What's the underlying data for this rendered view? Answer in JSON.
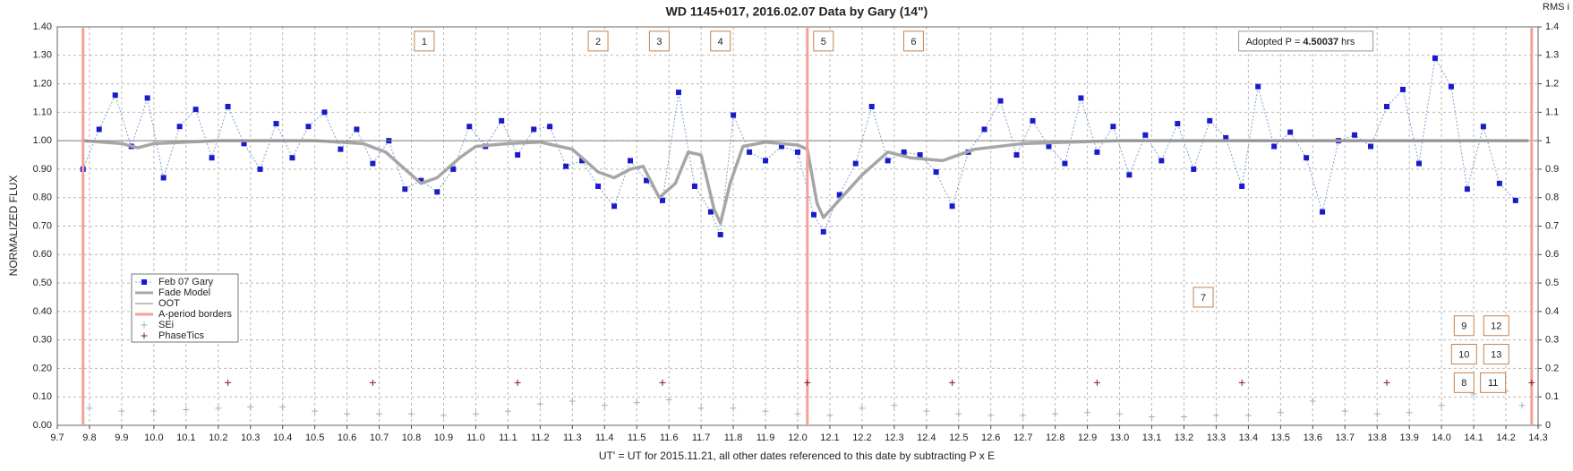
{
  "chart_data": {
    "type": "scatter",
    "title": "WD 1145+017, 2016.02.07 Data by Gary (14\")",
    "x_label": "UT' = UT for 2015.11.21, all other dates referenced to this date by subtracting P x E",
    "y_label": "NORMALIZED FLUX",
    "y2_label": "RMS i",
    "xlim": [
      9.7,
      14.3
    ],
    "xticks": [
      9.7,
      9.8,
      9.9,
      {
        "value": 10,
        "label": "10.0"
      },
      10.1,
      10.2,
      10.3,
      10.4,
      10.5,
      10.6,
      10.7,
      10.8,
      10.9,
      {
        "value": 11,
        "label": "11.0"
      },
      11.1,
      11.2,
      11.3,
      11.4,
      11.5,
      11.6,
      11.7,
      11.8,
      11.9,
      {
        "value": 12,
        "label": "12.0"
      },
      12.1,
      12.2,
      12.3,
      12.4,
      12.5,
      12.6,
      12.7,
      12.8,
      12.9,
      {
        "value": 13,
        "label": "13.0"
      },
      13.1,
      13.2,
      13.3,
      13.4,
      13.5,
      13.6,
      13.7,
      13.8,
      13.9,
      {
        "value": 14,
        "label": "14.0"
      },
      14.1,
      14.2,
      14.3
    ],
    "ylim": [
      0,
      1.4
    ],
    "yticks": [
      {
        "value": 0,
        "label": "0.00"
      },
      {
        "value": 0.1,
        "label": "0.10"
      },
      {
        "value": 0.2,
        "label": "0.20"
      },
      {
        "value": 0.3,
        "label": "0.30"
      },
      {
        "value": 0.4,
        "label": "0.40"
      },
      {
        "value": 0.5,
        "label": "0.50"
      },
      {
        "value": 0.6,
        "label": "0.60"
      },
      {
        "value": 0.7,
        "label": "0.70"
      },
      {
        "value": 0.8,
        "label": "0.80"
      },
      {
        "value": 0.9,
        "label": "0.90"
      },
      {
        "value": 1,
        "label": "1.00"
      },
      {
        "value": 1.1,
        "label": "1.10"
      },
      {
        "value": 1.2,
        "label": "1.20"
      },
      {
        "value": 1.3,
        "label": "1.30"
      },
      {
        "value": 1.4,
        "label": "1.40"
      }
    ],
    "y2lim": [
      0,
      1.4
    ],
    "y2ticks": [
      0,
      0.1,
      0.2,
      0.3,
      0.4,
      0.5,
      0.6,
      0.7,
      0.8,
      0.9,
      1,
      1.1,
      1.2,
      1.3,
      1.4
    ],
    "grid": true,
    "legend": "lower-left",
    "series": [
      {
        "name": "Feb 07 Gary",
        "kind": "marker-line",
        "color": "#1a1acc",
        "line_color": "#7fa0d0",
        "x": [
          9.78,
          9.83,
          9.88,
          9.93,
          9.98,
          10.03,
          10.08,
          10.13,
          10.18,
          10.23,
          10.28,
          10.33,
          10.38,
          10.43,
          10.48,
          10.53,
          10.58,
          10.63,
          10.68,
          10.73,
          10.78,
          10.83,
          10.88,
          10.93,
          10.98,
          11.03,
          11.08,
          11.13,
          11.18,
          11.23,
          11.28,
          11.33,
          11.38,
          11.43,
          11.48,
          11.53,
          11.58,
          11.63,
          11.68,
          11.73,
          11.76,
          11.8,
          11.85,
          11.9,
          11.95,
          12.0,
          12.05,
          12.08,
          12.13,
          12.18,
          12.23,
          12.28,
          12.33,
          12.38,
          12.43,
          12.48,
          12.53,
          12.58,
          12.63,
          12.68,
          12.73,
          12.78,
          12.83,
          12.88,
          12.93,
          12.98,
          13.03,
          13.08,
          13.13,
          13.18,
          13.23,
          13.28,
          13.33,
          13.38,
          13.43,
          13.48,
          13.53,
          13.58,
          13.63,
          13.68,
          13.73,
          13.78,
          13.83,
          13.88,
          13.93,
          13.98,
          14.03,
          14.08,
          14.13,
          14.18,
          14.23
        ],
        "values": [
          0.9,
          1.04,
          1.16,
          0.98,
          1.15,
          0.87,
          1.05,
          1.11,
          0.94,
          1.12,
          0.99,
          0.9,
          1.06,
          0.94,
          1.05,
          1.1,
          0.97,
          1.04,
          0.92,
          1.0,
          0.83,
          0.86,
          0.82,
          0.9,
          1.05,
          0.98,
          1.07,
          0.95,
          1.04,
          1.05,
          0.91,
          0.93,
          0.84,
          0.77,
          0.93,
          0.86,
          0.79,
          1.17,
          0.84,
          0.75,
          0.67,
          1.09,
          0.96,
          0.93,
          0.98,
          0.96,
          0.74,
          0.68,
          0.81,
          0.92,
          1.12,
          0.93,
          0.96,
          0.95,
          0.89,
          0.77,
          0.96,
          1.04,
          1.14,
          0.95,
          1.07,
          0.98,
          0.92,
          1.15,
          0.96,
          1.05,
          0.88,
          1.02,
          0.93,
          1.06,
          0.9,
          1.07,
          1.01,
          0.84,
          1.19,
          0.98,
          1.03,
          0.94,
          0.75,
          1.0,
          1.02,
          0.98,
          1.12,
          1.18,
          0.92,
          1.29,
          1.19,
          0.83,
          1.05,
          0.85,
          0.79
        ]
      },
      {
        "name": "Fade Model",
        "kind": "line",
        "color": "#a6a6a6",
        "x": [
          9.78,
          9.9,
          9.95,
          10.0,
          10.1,
          10.2,
          10.5,
          10.65,
          10.72,
          10.78,
          10.83,
          10.88,
          10.95,
          11.0,
          11.1,
          11.2,
          11.3,
          11.38,
          11.43,
          11.48,
          11.52,
          11.57,
          11.62,
          11.66,
          11.7,
          11.74,
          11.76,
          11.79,
          11.83,
          11.9,
          12.0,
          12.03,
          12.06,
          12.08,
          12.12,
          12.2,
          12.28,
          12.35,
          12.45,
          12.55,
          12.7,
          13.0,
          14.27
        ],
        "values": [
          1.0,
          0.99,
          0.975,
          0.99,
          0.995,
          1.0,
          1.0,
          0.99,
          0.96,
          0.9,
          0.85,
          0.87,
          0.94,
          0.98,
          0.99,
          0.995,
          0.97,
          0.89,
          0.87,
          0.9,
          0.91,
          0.8,
          0.85,
          0.96,
          0.95,
          0.76,
          0.71,
          0.85,
          0.98,
          0.995,
          0.985,
          0.97,
          0.78,
          0.73,
          0.78,
          0.88,
          0.96,
          0.94,
          0.93,
          0.97,
          0.99,
          1.0,
          1.0
        ]
      },
      {
        "name": "OOT",
        "kind": "line-thin",
        "color": "#7f7f7f",
        "x": [
          9.7,
          14.3
        ],
        "values": [
          1,
          1
        ]
      },
      {
        "name": "A-period borders",
        "kind": "vline",
        "color": "#f4a09a",
        "x": [
          9.78,
          12.03,
          14.28
        ]
      },
      {
        "name": "SEi",
        "kind": "plus",
        "color": "#9fb0c8",
        "axis": "y2",
        "x": [
          9.8,
          9.9,
          10.0,
          10.1,
          10.2,
          10.3,
          10.4,
          10.5,
          10.6,
          10.7,
          10.8,
          10.9,
          11.0,
          11.1,
          11.2,
          11.3,
          11.4,
          11.5,
          11.6,
          11.7,
          11.8,
          11.9,
          12.0,
          12.1,
          12.2,
          12.3,
          12.4,
          12.5,
          12.6,
          12.7,
          12.8,
          12.9,
          13.0,
          13.1,
          13.2,
          13.3,
          13.4,
          13.5,
          13.6,
          13.7,
          13.8,
          13.9,
          14.0,
          14.1,
          14.2,
          14.25
        ],
        "values": [
          0.06,
          0.05,
          0.05,
          0.055,
          0.06,
          0.065,
          0.065,
          0.05,
          0.04,
          0.04,
          0.04,
          0.035,
          0.04,
          0.05,
          0.075,
          0.085,
          0.07,
          0.08,
          0.09,
          0.06,
          0.06,
          0.05,
          0.04,
          0.035,
          0.06,
          0.07,
          0.05,
          0.04,
          0.035,
          0.035,
          0.04,
          0.045,
          0.04,
          0.03,
          0.03,
          0.035,
          0.035,
          0.045,
          0.085,
          0.05,
          0.04,
          0.045,
          0.07,
          0.11,
          0.12,
          0.07
        ]
      },
      {
        "name": "PhaseTics",
        "kind": "plus",
        "color": "#8b1a1a",
        "x": [
          10.23,
          10.68,
          11.13,
          11.58,
          12.03,
          12.48,
          12.93,
          13.38,
          13.83,
          14.28
        ],
        "values": [
          0.15,
          0.15,
          0.15,
          0.15,
          0.15,
          0.15,
          0.15,
          0.15,
          0.15,
          0.15
        ]
      }
    ],
    "annotations": [
      "1",
      "2",
      "3",
      "4",
      "5",
      "6",
      "7",
      "8",
      "9",
      "10",
      "11",
      "12",
      "13"
    ],
    "period_note": {
      "prefix": "Adopted P = ",
      "value": "4.50037",
      "suffix": " hrs"
    }
  }
}
